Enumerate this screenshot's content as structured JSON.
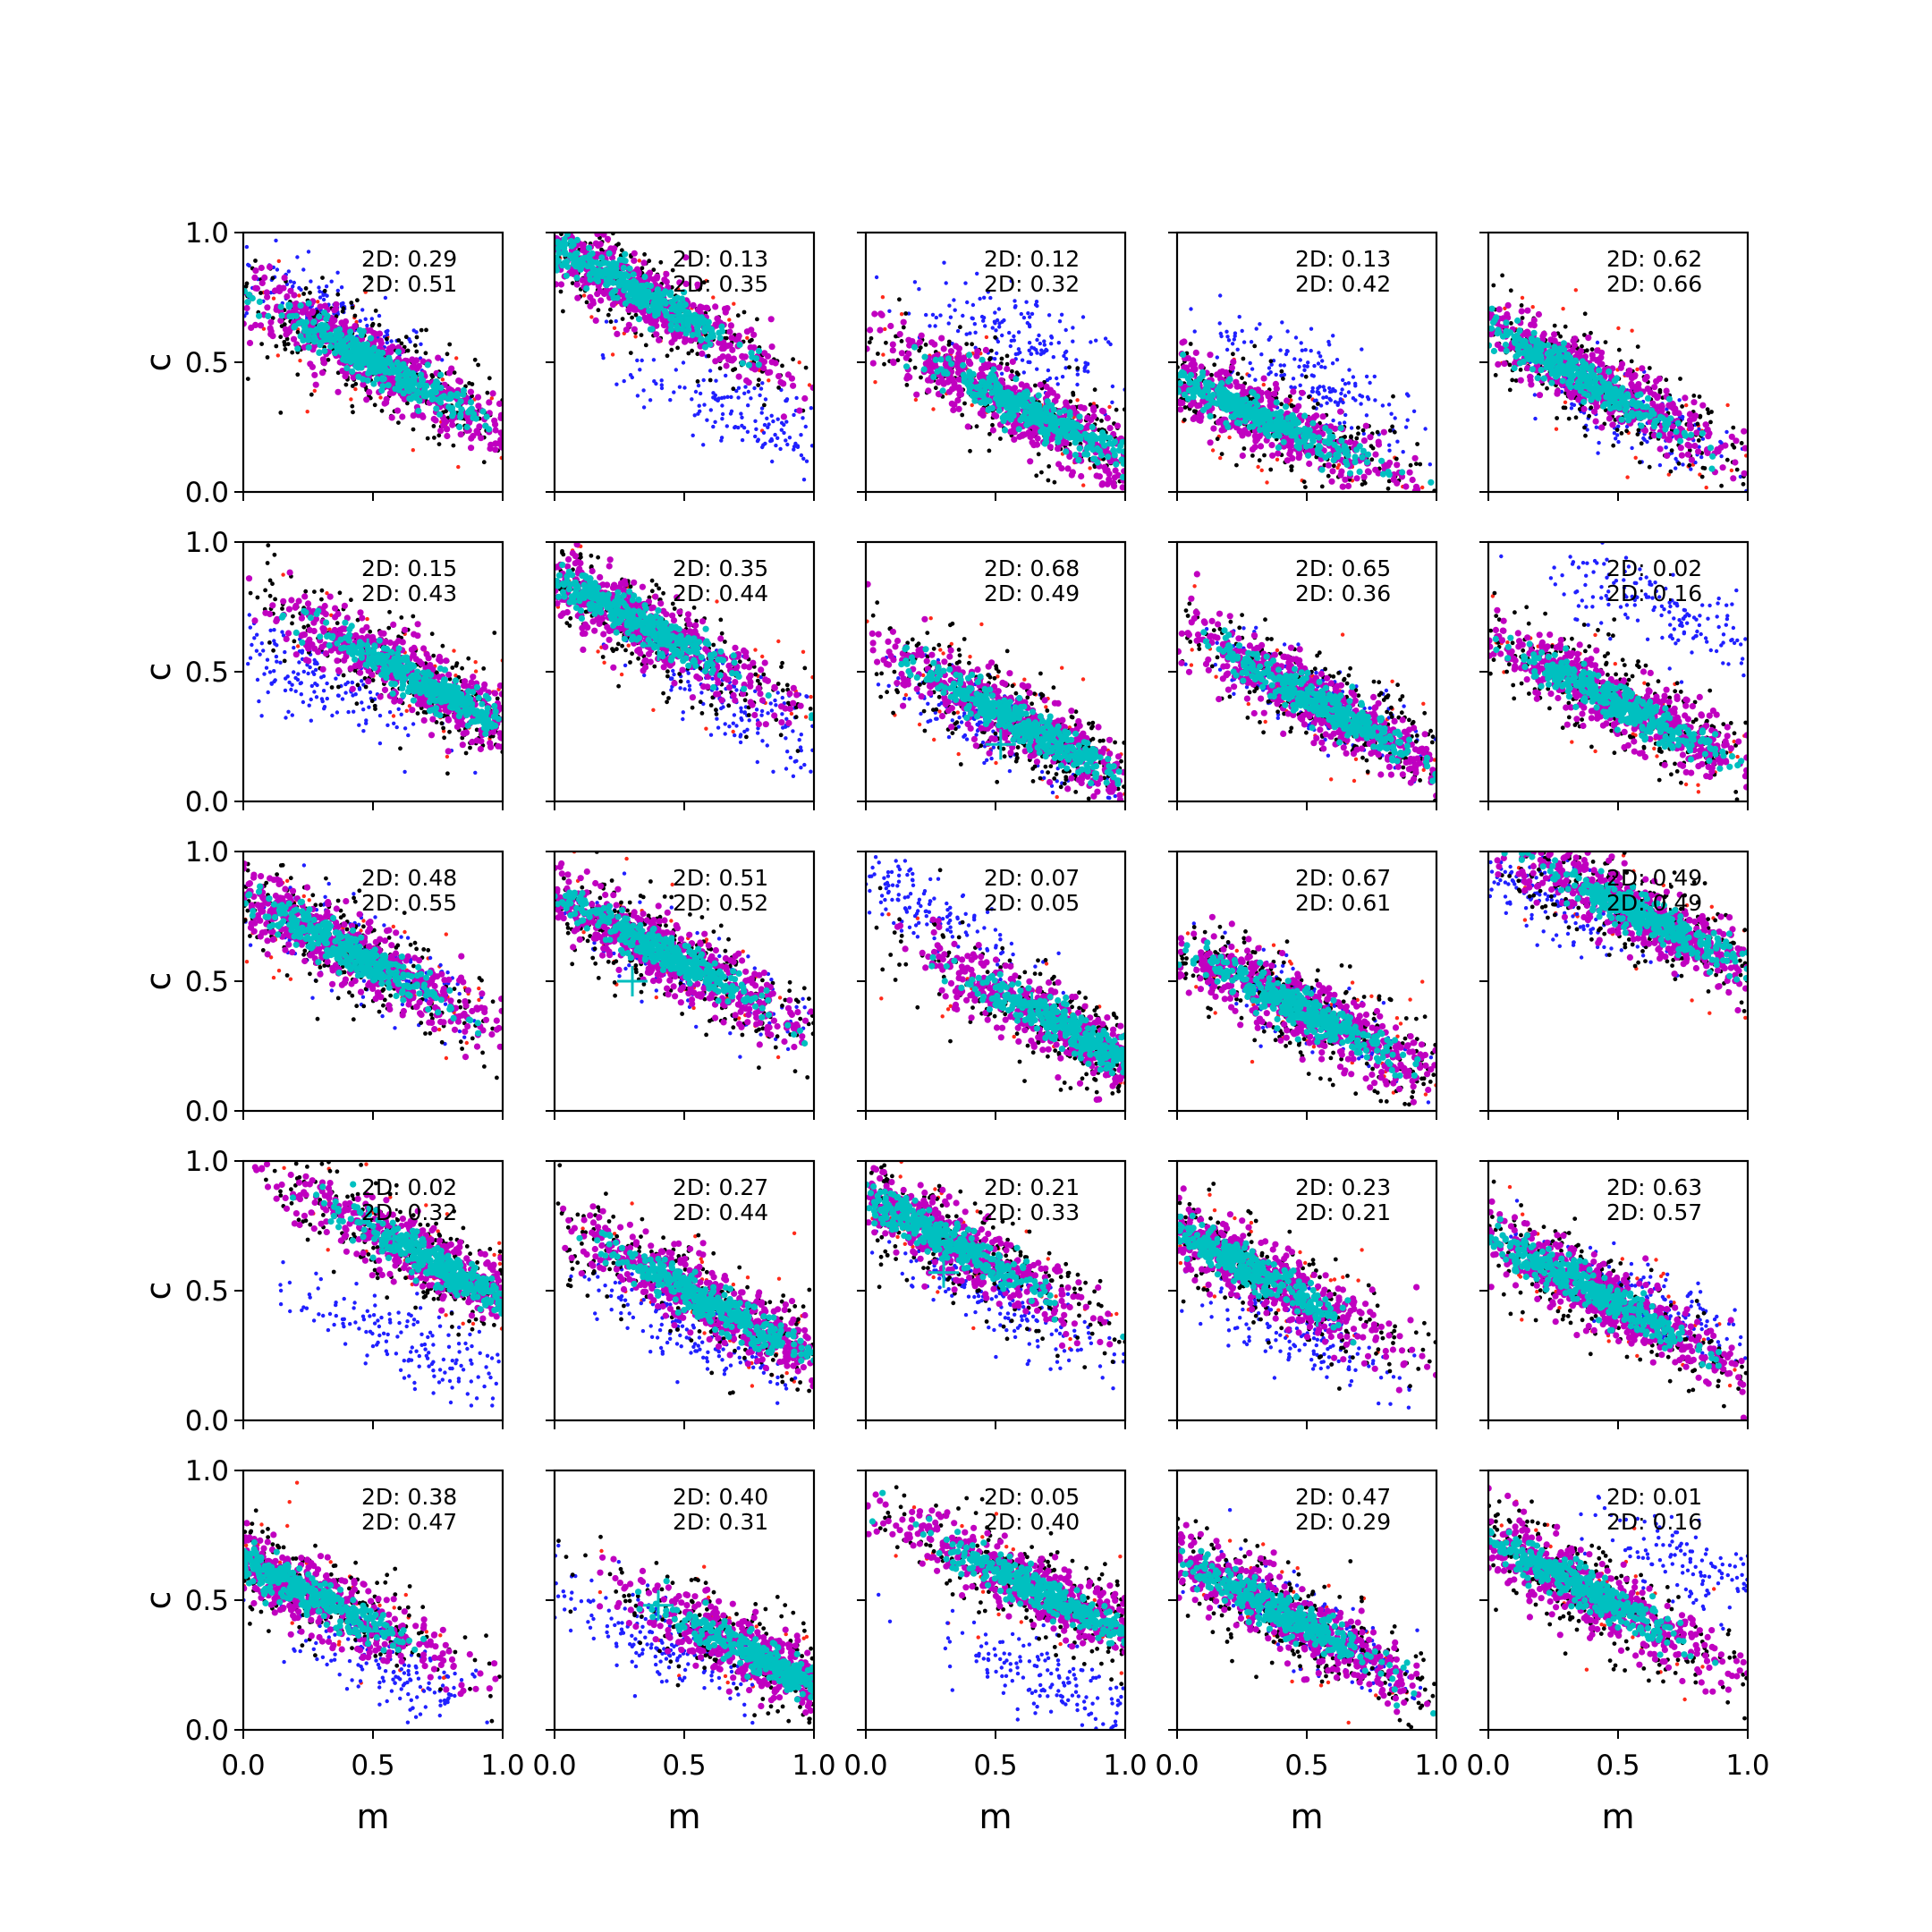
{
  "figure": {
    "xlabel": "m",
    "ylabel": "c",
    "tick_labels": [
      "0.0",
      "0.5",
      "1.0"
    ],
    "annotation_prefix": "2D: "
  },
  "colors": {
    "series_red": "#ff2a1a",
    "series_black": "#000000",
    "series_magenta": "#c000c0",
    "series_cyan": "#00c0c0",
    "series_blue": "#2020ff",
    "marker": "#00bfbf"
  },
  "chart_data": [
    {
      "type": "scatter",
      "row": 1,
      "col": 1,
      "xlim": [
        0,
        1
      ],
      "ylim": [
        0,
        1
      ],
      "annotations": [
        "2D: 0.29",
        "2D: 0.51"
      ],
      "main": {
        "center": [
          0.5,
          0.5
        ],
        "slope": -0.55
      },
      "alt": {
        "center": [
          0.3,
          0.7
        ],
        "slope": -0.55
      },
      "marker": null
    },
    {
      "type": "scatter",
      "row": 1,
      "col": 2,
      "xlim": [
        0,
        1
      ],
      "ylim": [
        0,
        1
      ],
      "annotations": [
        "2D: 0.13",
        "2D: 0.35"
      ],
      "main": {
        "center": [
          0.3,
          0.78
        ],
        "slope": -0.55
      },
      "alt": {
        "center": [
          0.72,
          0.3
        ],
        "slope": -0.45
      },
      "marker": [
        0.5,
        0.68
      ]
    },
    {
      "type": "scatter",
      "row": 1,
      "col": 3,
      "xlim": [
        0,
        1
      ],
      "ylim": [
        0,
        1
      ],
      "annotations": [
        "2D: 0.12",
        "2D: 0.32"
      ],
      "main": {
        "center": [
          0.65,
          0.3
        ],
        "slope": -0.5
      },
      "alt": {
        "center": [
          0.6,
          0.6
        ],
        "slope": -0.45
      },
      "marker": null
    },
    {
      "type": "scatter",
      "row": 1,
      "col": 4,
      "xlim": [
        0,
        1
      ],
      "ylim": [
        0,
        1
      ],
      "annotations": [
        "2D: 0.13",
        "2D: 0.42"
      ],
      "main": {
        "center": [
          0.3,
          0.3
        ],
        "slope": -0.45
      },
      "alt": {
        "center": [
          0.55,
          0.42
        ],
        "slope": -0.55
      },
      "marker": null
    },
    {
      "type": "scatter",
      "row": 1,
      "col": 5,
      "xlim": [
        0,
        1
      ],
      "ylim": [
        0,
        1
      ],
      "annotations": [
        "2D: 0.62",
        "2D: 0.66"
      ],
      "main": {
        "center": [
          0.35,
          0.45
        ],
        "slope": -0.55
      },
      "alt": {
        "center": [
          0.55,
          0.3
        ],
        "slope": -0.55
      },
      "marker": null
    },
    {
      "type": "scatter",
      "row": 2,
      "col": 1,
      "xlim": [
        0,
        1
      ],
      "ylim": [
        0,
        1
      ],
      "annotations": [
        "2D: 0.15",
        "2D: 0.43"
      ],
      "main": {
        "center": [
          0.7,
          0.45
        ],
        "slope": -0.55
      },
      "alt": {
        "center": [
          0.2,
          0.5
        ],
        "slope": -0.45
      },
      "marker": [
        0.48,
        0.57
      ]
    },
    {
      "type": "scatter",
      "row": 2,
      "col": 2,
      "xlim": [
        0,
        1
      ],
      "ylim": [
        0,
        1
      ],
      "annotations": [
        "2D: 0.35",
        "2D: 0.44"
      ],
      "main": {
        "center": [
          0.3,
          0.7
        ],
        "slope": -0.55
      },
      "alt": {
        "center": [
          0.75,
          0.35
        ],
        "slope": -0.55
      },
      "marker": [
        0.4,
        0.6
      ]
    },
    {
      "type": "scatter",
      "row": 2,
      "col": 3,
      "xlim": [
        0,
        1
      ],
      "ylim": [
        0,
        1
      ],
      "annotations": [
        "2D: 0.68",
        "2D: 0.49"
      ],
      "main": {
        "center": [
          0.6,
          0.3
        ],
        "slope": -0.55
      },
      "alt": {
        "center": [
          0.5,
          0.3
        ],
        "slope": -0.55
      },
      "marker": [
        0.52,
        0.22
      ]
    },
    {
      "type": "scatter",
      "row": 2,
      "col": 4,
      "xlim": [
        0,
        1
      ],
      "ylim": [
        0,
        1
      ],
      "annotations": [
        "2D: 0.65",
        "2D: 0.36"
      ],
      "main": {
        "center": [
          0.55,
          0.38
        ],
        "slope": -0.55
      },
      "alt": {
        "center": [
          0.55,
          0.38
        ],
        "slope": -0.55
      },
      "marker": null
    },
    {
      "type": "scatter",
      "row": 2,
      "col": 5,
      "xlim": [
        0,
        1
      ],
      "ylim": [
        0,
        1
      ],
      "annotations": [
        "2D: 0.02",
        "2D: 0.16"
      ],
      "main": {
        "center": [
          0.5,
          0.38
        ],
        "slope": -0.5
      },
      "alt": {
        "center": [
          0.7,
          0.72
        ],
        "slope": -0.45
      },
      "marker": null
    },
    {
      "type": "scatter",
      "row": 3,
      "col": 1,
      "xlim": [
        0,
        1
      ],
      "ylim": [
        0,
        1
      ],
      "annotations": [
        "2D: 0.48",
        "2D: 0.55"
      ],
      "main": {
        "center": [
          0.4,
          0.62
        ],
        "slope": -0.55
      },
      "alt": {
        "center": [
          0.45,
          0.6
        ],
        "slope": -0.55
      },
      "marker": null
    },
    {
      "type": "scatter",
      "row": 3,
      "col": 2,
      "xlim": [
        0,
        1
      ],
      "ylim": [
        0,
        1
      ],
      "annotations": [
        "2D: 0.51",
        "2D: 0.52"
      ],
      "main": {
        "center": [
          0.4,
          0.62
        ],
        "slope": -0.55
      },
      "alt": {
        "center": [
          0.5,
          0.55
        ],
        "slope": -0.55
      },
      "marker": [
        0.3,
        0.5
      ]
    },
    {
      "type": "scatter",
      "row": 3,
      "col": 3,
      "xlim": [
        0,
        1
      ],
      "ylim": [
        0,
        1
      ],
      "annotations": [
        "2D: 0.07",
        "2D: 0.05"
      ],
      "main": {
        "center": [
          0.8,
          0.3
        ],
        "slope": -0.55
      },
      "alt": {
        "center": [
          0.2,
          0.8
        ],
        "slope": -0.5
      },
      "marker": [
        0.64,
        0.4
      ]
    },
    {
      "type": "scatter",
      "row": 3,
      "col": 4,
      "xlim": [
        0,
        1
      ],
      "ylim": [
        0,
        1
      ],
      "annotations": [
        "2D: 0.67",
        "2D: 0.61"
      ],
      "main": {
        "center": [
          0.5,
          0.38
        ],
        "slope": -0.5
      },
      "alt": {
        "center": [
          0.5,
          0.38
        ],
        "slope": -0.5
      },
      "marker": null
    },
    {
      "type": "scatter",
      "row": 3,
      "col": 5,
      "xlim": [
        0,
        1
      ],
      "ylim": [
        0,
        1
      ],
      "annotations": [
        "2D: 0.49",
        "2D: 0.49"
      ],
      "main": {
        "center": [
          0.6,
          0.75
        ],
        "slope": -0.5
      },
      "alt": {
        "center": [
          0.25,
          0.8
        ],
        "slope": -0.45
      },
      "marker": null
    },
    {
      "type": "scatter",
      "row": 4,
      "col": 1,
      "xlim": [
        0,
        1
      ],
      "ylim": [
        0,
        1
      ],
      "annotations": [
        "2D: 0.02",
        "2D: 0.32"
      ],
      "main": {
        "center": [
          0.75,
          0.6
        ],
        "slope": -0.55
      },
      "alt": {
        "center": [
          0.65,
          0.3
        ],
        "slope": -0.45
      },
      "marker": [
        0.58,
        0.7
      ]
    },
    {
      "type": "scatter",
      "row": 4,
      "col": 2,
      "xlim": [
        0,
        1
      ],
      "ylim": [
        0,
        1
      ],
      "annotations": [
        "2D: 0.27",
        "2D: 0.44"
      ],
      "main": {
        "center": [
          0.6,
          0.45
        ],
        "slope": -0.55
      },
      "alt": {
        "center": [
          0.55,
          0.35
        ],
        "slope": -0.5
      },
      "marker": null
    },
    {
      "type": "scatter",
      "row": 4,
      "col": 3,
      "xlim": [
        0,
        1
      ],
      "ylim": [
        0,
        1
      ],
      "annotations": [
        "2D: 0.21",
        "2D: 0.33"
      ],
      "main": {
        "center": [
          0.3,
          0.7
        ],
        "slope": -0.55
      },
      "alt": {
        "center": [
          0.55,
          0.45
        ],
        "slope": -0.5
      },
      "marker": [
        0.3,
        0.57
      ]
    },
    {
      "type": "scatter",
      "row": 4,
      "col": 4,
      "xlim": [
        0,
        1
      ],
      "ylim": [
        0,
        1
      ],
      "annotations": [
        "2D: 0.23",
        "2D: 0.21"
      ],
      "main": {
        "center": [
          0.25,
          0.6
        ],
        "slope": -0.55
      },
      "alt": {
        "center": [
          0.45,
          0.35
        ],
        "slope": -0.5
      },
      "marker": [
        0.54,
        0.42
      ]
    },
    {
      "type": "scatter",
      "row": 4,
      "col": 5,
      "xlim": [
        0,
        1
      ],
      "ylim": [
        0,
        1
      ],
      "annotations": [
        "2D: 0.63",
        "2D: 0.57"
      ],
      "main": {
        "center": [
          0.4,
          0.5
        ],
        "slope": -0.55
      },
      "alt": {
        "center": [
          0.6,
          0.45
        ],
        "slope": -0.55
      },
      "marker": null
    },
    {
      "type": "scatter",
      "row": 5,
      "col": 1,
      "xlim": [
        0,
        1
      ],
      "ylim": [
        0,
        1
      ],
      "annotations": [
        "2D: 0.38",
        "2D: 0.47"
      ],
      "main": {
        "center": [
          0.2,
          0.55
        ],
        "slope": -0.5
      },
      "alt": {
        "center": [
          0.55,
          0.25
        ],
        "slope": -0.5
      },
      "marker": [
        0.48,
        0.38
      ]
    },
    {
      "type": "scatter",
      "row": 5,
      "col": 2,
      "xlim": [
        0,
        1
      ],
      "ylim": [
        0,
        1
      ],
      "annotations": [
        "2D: 0.40",
        "2D: 0.31"
      ],
      "main": {
        "center": [
          0.85,
          0.25
        ],
        "slope": -0.5
      },
      "alt": {
        "center": [
          0.4,
          0.35
        ],
        "slope": -0.5
      },
      "marker": [
        0.4,
        0.48
      ]
    },
    {
      "type": "scatter",
      "row": 5,
      "col": 3,
      "xlim": [
        0,
        1
      ],
      "ylim": [
        0,
        1
      ],
      "annotations": [
        "2D: 0.05",
        "2D: 0.40"
      ],
      "main": {
        "center": [
          0.7,
          0.52
        ],
        "slope": -0.5
      },
      "alt": {
        "center": [
          0.7,
          0.2
        ],
        "slope": -0.45
      },
      "marker": null
    },
    {
      "type": "scatter",
      "row": 5,
      "col": 4,
      "xlim": [
        0,
        1
      ],
      "ylim": [
        0,
        1
      ],
      "annotations": [
        "2D: 0.47",
        "2D: 0.29"
      ],
      "main": {
        "center": [
          0.4,
          0.45
        ],
        "slope": -0.55
      },
      "alt": {
        "center": [
          0.5,
          0.4
        ],
        "slope": -0.55
      },
      "marker": null
    },
    {
      "type": "scatter",
      "row": 5,
      "col": 5,
      "xlim": [
        0,
        1
      ],
      "ylim": [
        0,
        1
      ],
      "annotations": [
        "2D: 0.01",
        "2D: 0.16"
      ],
      "main": {
        "center": [
          0.35,
          0.55
        ],
        "slope": -0.55
      },
      "alt": {
        "center": [
          0.85,
          0.6
        ],
        "slope": -0.45
      },
      "marker": null
    }
  ]
}
